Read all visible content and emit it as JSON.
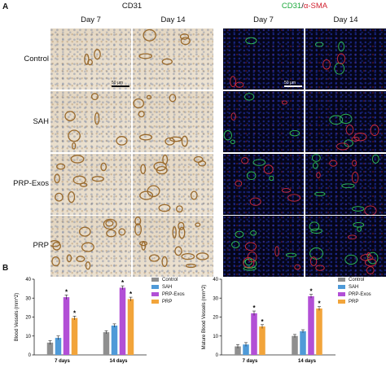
{
  "panel_a": {
    "letter": "A",
    "cd31_title": "CD31",
    "fluor_title_green": "CD31",
    "fluor_title_sep": "/",
    "fluor_title_red": "α-SMA",
    "columns": [
      "Day 7",
      "Day 14",
      "Day 7",
      "Day 14"
    ],
    "rows": [
      "Control",
      "SAH",
      "PRP-Exos",
      "PRP"
    ],
    "scale_label": "50 μm",
    "colors": {
      "green": "#1aa83a",
      "red": "#d11f2e"
    }
  },
  "panel_b": {
    "letter": "B"
  },
  "chart_data": [
    {
      "type": "bar",
      "ylabel": "Blood Vessels (mm^2)",
      "ylim": [
        0,
        40
      ],
      "yticks": [
        0,
        10,
        20,
        30,
        40
      ],
      "categories": [
        "7 days",
        "14 days"
      ],
      "series": [
        {
          "name": "Control",
          "color": "#8f8f8f",
          "values": [
            6.5,
            12.0
          ],
          "errors": [
            1.0,
            0.8
          ]
        },
        {
          "name": "SAH",
          "color": "#4f9ad8",
          "values": [
            9.0,
            15.5
          ],
          "errors": [
            1.0,
            0.9
          ]
        },
        {
          "name": "PRP-Exos",
          "color": "#b24fd6",
          "values": [
            30.5,
            35.5
          ],
          "errors": [
            1.2,
            1.0
          ]
        },
        {
          "name": "PRP",
          "color": "#f2a43a",
          "values": [
            19.5,
            29.5
          ],
          "errors": [
            1.0,
            1.0
          ]
        }
      ],
      "stars": [
        "",
        "",
        "*",
        "*"
      ],
      "legend": [
        "Control",
        "SAH",
        "PRP-Exos",
        "PRP"
      ]
    },
    {
      "type": "bar",
      "ylabel": "Mature Blood Vessels (mm^2)",
      "ylim": [
        0,
        40
      ],
      "yticks": [
        0,
        10,
        20,
        30,
        40
      ],
      "categories": [
        "7 days",
        "14 days"
      ],
      "series": [
        {
          "name": "Control",
          "color": "#8f8f8f",
          "values": [
            4.5,
            10.0
          ],
          "errors": [
            1.0,
            0.8
          ]
        },
        {
          "name": "SAH",
          "color": "#4f9ad8",
          "values": [
            5.5,
            12.5
          ],
          "errors": [
            1.0,
            0.8
          ]
        },
        {
          "name": "PRP-Exos",
          "color": "#b24fd6",
          "values": [
            22.0,
            31.0
          ],
          "errors": [
            1.2,
            1.0
          ]
        },
        {
          "name": "PRP",
          "color": "#f2a43a",
          "values": [
            15.0,
            24.5
          ],
          "errors": [
            1.0,
            1.0
          ]
        }
      ],
      "stars": [
        "",
        "",
        "*",
        "*"
      ],
      "legend": [
        "Control",
        "SAH",
        "PRP-Exos",
        "PRP"
      ]
    }
  ]
}
